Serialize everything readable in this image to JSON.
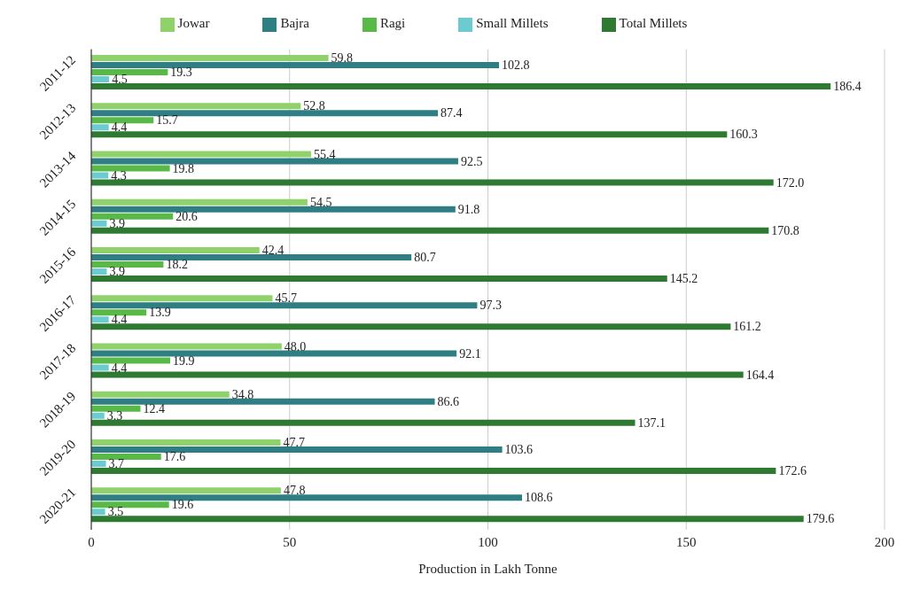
{
  "chart_data": {
    "type": "bar",
    "orientation": "horizontal",
    "xlabel": "Production in Lakh Tonne",
    "categories": [
      "2011-12",
      "2012-13",
      "2013-14",
      "2014-15",
      "2015-16",
      "2016-17",
      "2017-18",
      "2018-19",
      "2019-20",
      "2020-21"
    ],
    "series": [
      {
        "name": "Jowar",
        "color": "#8fd16a",
        "values": [
          59.8,
          52.8,
          55.4,
          54.5,
          42.4,
          45.7,
          48.0,
          34.8,
          47.7,
          47.8
        ],
        "value_labels": [
          "59.8",
          "52.8",
          "55.4",
          "54.5",
          "42.4",
          "45.7",
          "48.0",
          "34.8",
          "47.7",
          "47.8"
        ]
      },
      {
        "name": "Bajra",
        "color": "#2f7e84",
        "values": [
          102.8,
          87.4,
          92.5,
          91.8,
          80.7,
          97.3,
          92.1,
          86.6,
          103.6,
          108.6
        ],
        "value_labels": [
          "102.8",
          "87.4",
          "92.5",
          "91.8",
          "80.7",
          "97.3",
          "92.1",
          "86.6",
          "103.6",
          "108.6"
        ]
      },
      {
        "name": "Ragi",
        "color": "#58b947",
        "values": [
          19.3,
          15.7,
          19.8,
          20.6,
          18.2,
          13.9,
          19.9,
          12.4,
          17.6,
          19.6
        ],
        "value_labels": [
          "19.3",
          "15.7",
          "19.8",
          "20.6",
          "18.2",
          "13.9",
          "19.9",
          "12.4",
          "17.6",
          "19.6"
        ]
      },
      {
        "name": "Small Millets",
        "color": "#6ccbd0",
        "values": [
          4.5,
          4.4,
          4.3,
          3.9,
          3.9,
          4.4,
          4.4,
          3.3,
          3.7,
          3.5
        ],
        "value_labels": [
          "4.5",
          "4.4",
          "4.3",
          "3.9",
          "3.9",
          "4.4",
          "4.4",
          "3.3",
          "3.7",
          "3.5"
        ]
      },
      {
        "name": "Total Millets",
        "color": "#2f7a32",
        "values": [
          186.4,
          160.3,
          172.0,
          170.8,
          145.2,
          161.2,
          164.4,
          137.1,
          172.6,
          179.6
        ],
        "value_labels": [
          "186.4",
          "160.3",
          "172.0",
          "170.8",
          "145.2",
          "161.2",
          "164.4",
          "137.1",
          "172.6",
          "179.6"
        ]
      }
    ],
    "xlim": [
      0,
      200
    ],
    "xticks": [
      0,
      50,
      100,
      150,
      200
    ],
    "grid": "x",
    "legend": "top"
  }
}
